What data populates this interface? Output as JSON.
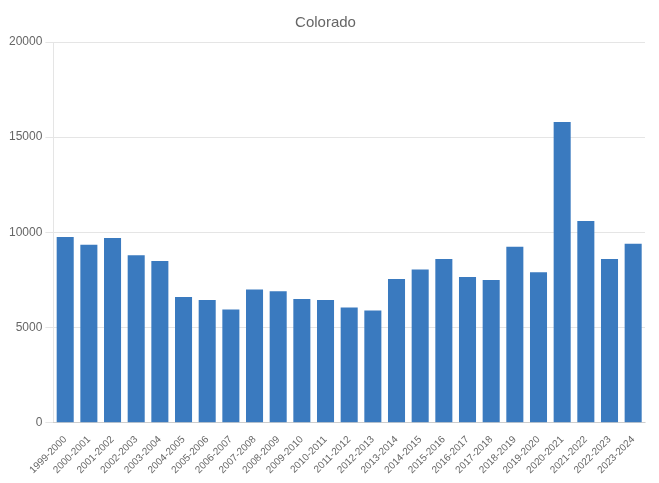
{
  "chart_data": {
    "type": "bar",
    "title": "Colorado",
    "categories": [
      "1999-2000",
      "2000-2001",
      "2001-2002",
      "2002-2003",
      "2003-2004",
      "2004-2005",
      "2005-2006",
      "2006-2007",
      "2007-2008",
      "2008-2009",
      "2009-2010",
      "2010-2011",
      "2011-2012",
      "2012-2013",
      "2013-2014",
      "2014-2015",
      "2015-2016",
      "2016-2017",
      "2017-2018",
      "2018-2019",
      "2019-2020",
      "2020-2021",
      "2021-2022",
      "2022-2023",
      "2023-2024"
    ],
    "values": [
      9750,
      9350,
      9700,
      8800,
      8500,
      6600,
      6450,
      5950,
      7000,
      6900,
      6500,
      6450,
      6050,
      5900,
      7550,
      8050,
      8600,
      7650,
      7500,
      9250,
      7900,
      15800,
      10600,
      8600,
      9400
    ],
    "color": "#3a7abf",
    "ylim": [
      0,
      20000
    ],
    "yticks": [
      0,
      5000,
      10000,
      15000,
      20000
    ],
    "grid": true
  }
}
